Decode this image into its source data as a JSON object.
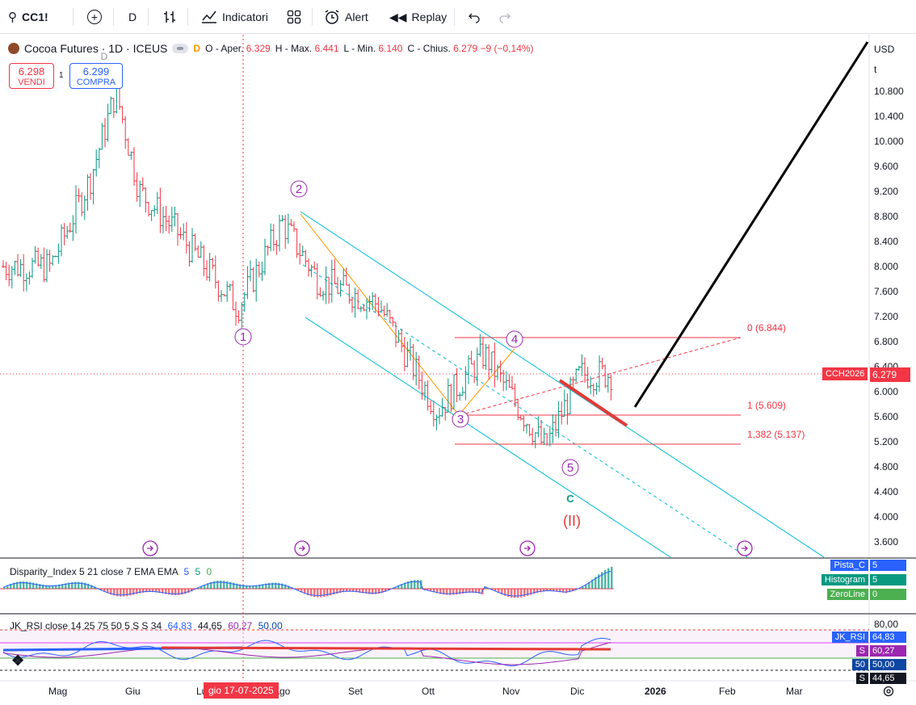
{
  "toolbar": {
    "symbol": "CC1!",
    "interval": "D",
    "indicators_label": "Indicatori",
    "alert_label": "Alert",
    "replay_label": "Replay"
  },
  "legend": {
    "title": "Cocoa Futures · 1D · ICEUS",
    "badge": "D",
    "open_label": "O - Aper.",
    "open_value": "6.329",
    "high_label": "H - Max.",
    "high_value": "6.441",
    "low_label": "L - Min.",
    "low_value": "6.140",
    "close_label": "C - Chius.",
    "close_value": "6.279",
    "change": "−9 (−0,14%)"
  },
  "trade": {
    "sell_price": "6.298",
    "sell_label": "VENDI",
    "spread": "1",
    "buy_price": "6.299",
    "buy_label": "COMPRA"
  },
  "price_axis": {
    "currency": "USD",
    "unit": "t",
    "ticks": [
      "10.800",
      "10.400",
      "10.000",
      "9.600",
      "9.200",
      "8.800",
      "8.400",
      "8.000",
      "7.600",
      "7.200",
      "6.800",
      "6.400",
      "6.000",
      "5.600",
      "5.200",
      "4.800",
      "4.400",
      "4.000",
      "3.600"
    ],
    "current_symbol": "CCH2026",
    "current_price": "6.279"
  },
  "time_axis": {
    "labels": [
      "Mag",
      "Giu",
      "Lu",
      "Ago",
      "Set",
      "Ott",
      "Nov",
      "Dic",
      "2026",
      "Feb",
      "Mar"
    ],
    "cursor_label": "gio 17-07-2025"
  },
  "waves": {
    "w1": "1",
    "w2": "2",
    "w3": "3",
    "w4": "4",
    "w5": "5",
    "c": "C",
    "big": "(II)",
    "top": "D"
  },
  "fib": {
    "level0": "0 (6.844)",
    "level1": "1 (5.609)",
    "level1382": "1,382 (5.137)"
  },
  "disparity": {
    "label": "Disparity_Index 5 21 close 7 EMA EMA",
    "vals": [
      "5",
      "5",
      "0"
    ],
    "tags": [
      {
        "name": "Pista_C",
        "value": "5",
        "color": "#2962ff"
      },
      {
        "name": "Histogram",
        "value": "5",
        "color": "#089981"
      },
      {
        "name": "ZeroLine",
        "value": "0",
        "color": "#4caf50"
      }
    ]
  },
  "rsi": {
    "label": "JK_RSI close 14 25 75 50 5 S S 34",
    "vals": [
      "64,83",
      "44,65",
      "60,27",
      "50,00"
    ],
    "axis_top": "80,00",
    "tags": [
      {
        "name": "JK_RSI",
        "value": "64,83",
        "color": "#2962ff"
      },
      {
        "name": "S",
        "value": "60,27",
        "color": "#9c27b0"
      },
      {
        "name": "50",
        "value": "50,00",
        "color": "#0d47a1"
      },
      {
        "name": "S",
        "value": "44,65",
        "color": "#131722"
      }
    ]
  },
  "chart_data": {
    "type": "candlestick",
    "title": "Cocoa Futures · 1D · ICEUS",
    "ylim": [
      3400,
      11000
    ],
    "y_unit": "USD/t",
    "approx_path": [
      {
        "date": "2025-04-28",
        "price": 8000
      },
      {
        "date": "2025-05-15",
        "price": 9400
      },
      {
        "date": "2025-05-26",
        "price": 10800
      },
      {
        "date": "2025-06-05",
        "price": 9200
      },
      {
        "date": "2025-06-20",
        "price": 8600
      },
      {
        "date": "2025-07-17",
        "price": 7350
      },
      {
        "date": "2025-08-05",
        "price": 8700
      },
      {
        "date": "2025-08-20",
        "price": 7800
      },
      {
        "date": "2025-09-15",
        "price": 7400
      },
      {
        "date": "2025-10-10",
        "price": 5700
      },
      {
        "date": "2025-10-30",
        "price": 6600
      },
      {
        "date": "2025-11-25",
        "price": 5100
      },
      {
        "date": "2025-12-10",
        "price": 6279
      }
    ],
    "fib_levels": [
      6844,
      5609,
      5137
    ]
  },
  "colors": {
    "up": "#089981",
    "down": "#f23645",
    "channel": "#26c6da",
    "wave": "#9c27b0",
    "fib": "#f23645",
    "red_mark": "#e53935"
  }
}
